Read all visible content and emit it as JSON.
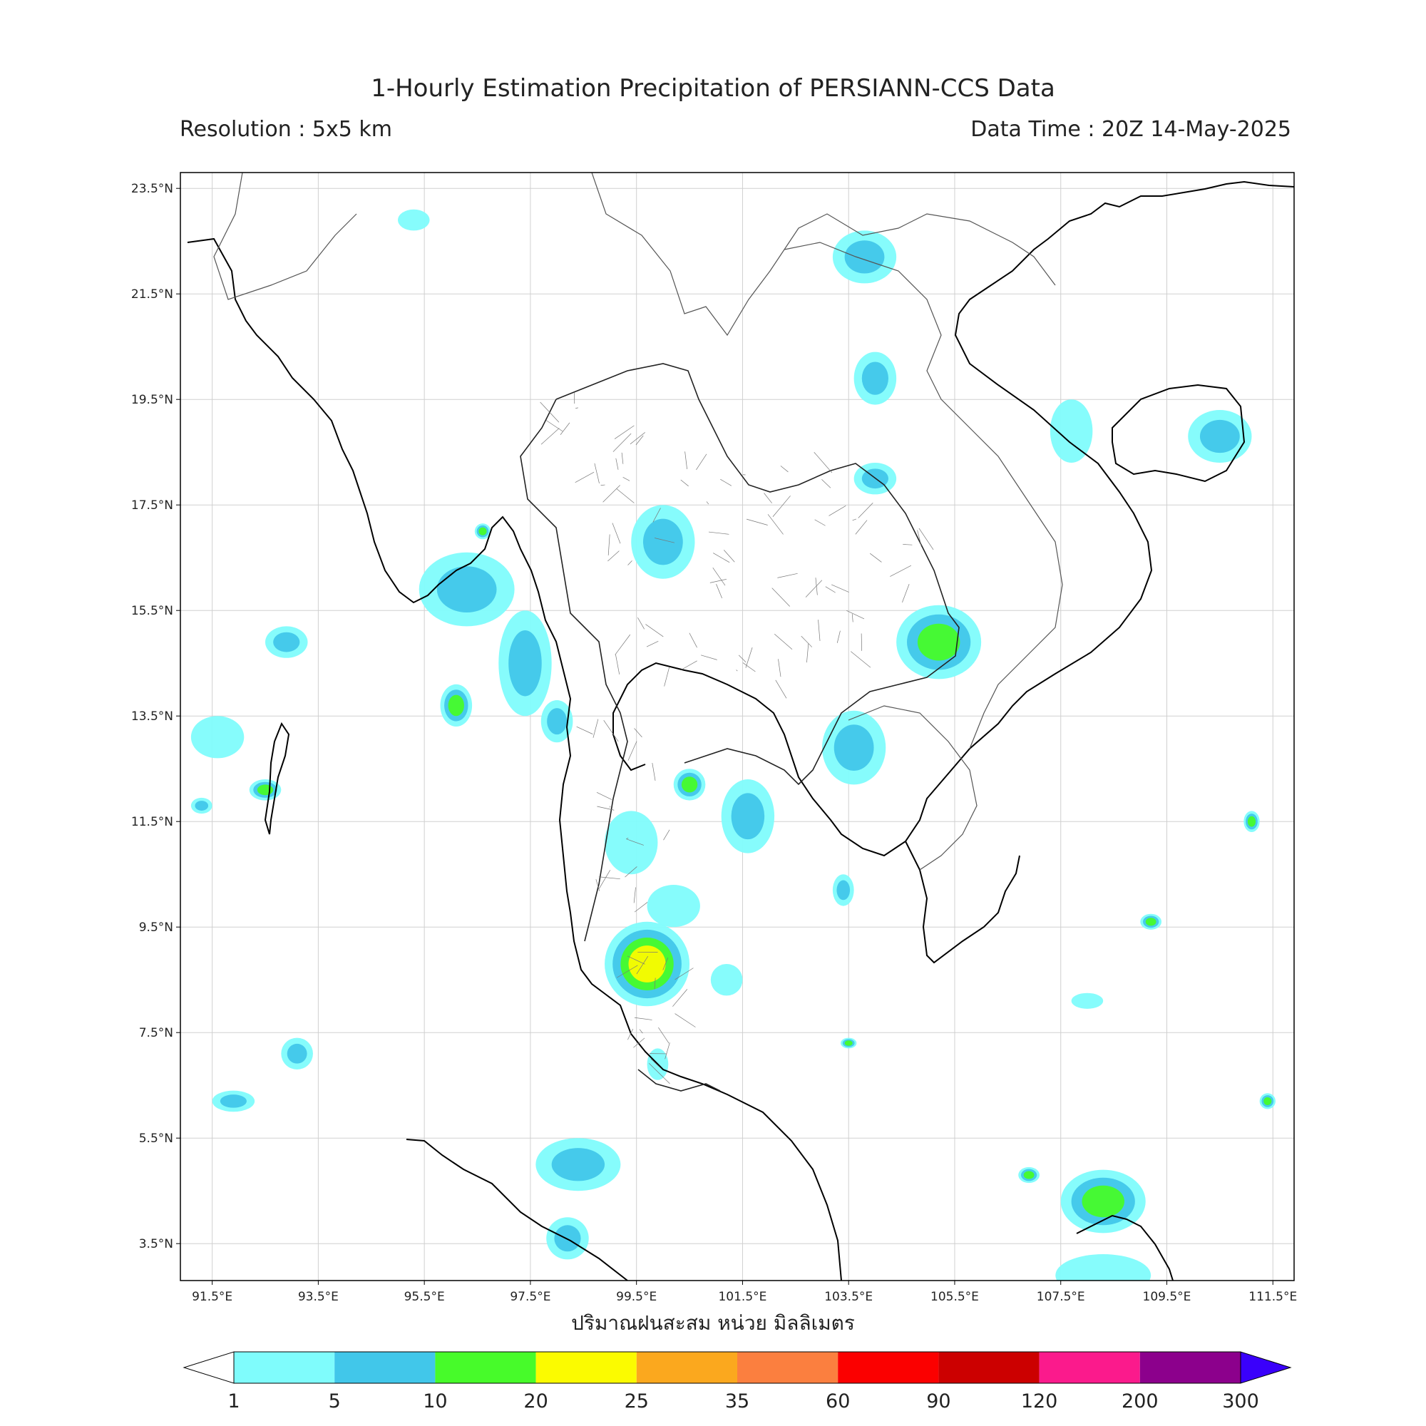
{
  "header": {
    "title": "1-Hourly Estimation Precipitation of PERSIANN-CCS Data",
    "resolution": "Resolution : 5x5 km",
    "data_time": "Data Time : 20Z 14-May-2025"
  },
  "map": {
    "lon_range": [
      90.9,
      111.9
    ],
    "lat_range": [
      2.8,
      23.8
    ],
    "lat_ticks": [
      "23.5°N",
      "21.5°N",
      "19.5°N",
      "17.5°N",
      "15.5°N",
      "13.5°N",
      "11.5°N",
      "9.5°N",
      "7.5°N",
      "5.5°N",
      "3.5°N"
    ],
    "lat_values": [
      23.5,
      21.5,
      19.5,
      17.5,
      15.5,
      13.5,
      11.5,
      9.5,
      7.5,
      5.5,
      3.5
    ],
    "lon_ticks": [
      "91.5°E",
      "93.5°E",
      "95.5°E",
      "97.5°E",
      "99.5°E",
      "101.5°E",
      "103.5°E",
      "105.5°E",
      "107.5°E",
      "109.5°E",
      "111.5°E"
    ],
    "lon_values": [
      91.5,
      93.5,
      95.5,
      97.5,
      99.5,
      101.5,
      103.5,
      105.5,
      107.5,
      109.5,
      111.5
    ],
    "grid": true,
    "precip_cells": [
      {
        "lon": 99.7,
        "lat": 8.8,
        "rx": 0.8,
        "ry": 0.8,
        "mm": 22
      },
      {
        "lon": 105.2,
        "lat": 14.9,
        "rx": 0.8,
        "ry": 0.7,
        "mm": 12
      },
      {
        "lon": 98.4,
        "lat": 5.0,
        "rx": 0.8,
        "ry": 0.5,
        "mm": 8
      },
      {
        "lon": 108.3,
        "lat": 4.3,
        "rx": 0.8,
        "ry": 0.6,
        "mm": 11
      },
      {
        "lon": 103.6,
        "lat": 12.9,
        "rx": 0.6,
        "ry": 0.7,
        "mm": 7
      },
      {
        "lon": 101.6,
        "lat": 11.6,
        "rx": 0.5,
        "ry": 0.7,
        "mm": 6
      },
      {
        "lon": 96.3,
        "lat": 15.9,
        "rx": 0.9,
        "ry": 0.7,
        "mm": 7
      },
      {
        "lon": 97.4,
        "lat": 14.5,
        "rx": 0.5,
        "ry": 1.0,
        "mm": 6
      },
      {
        "lon": 103.8,
        "lat": 22.2,
        "rx": 0.6,
        "ry": 0.5,
        "mm": 6
      },
      {
        "lon": 110.5,
        "lat": 18.8,
        "rx": 0.6,
        "ry": 0.5,
        "mm": 6
      },
      {
        "lon": 100.0,
        "lat": 16.8,
        "rx": 0.6,
        "ry": 0.7,
        "mm": 6
      },
      {
        "lon": 92.9,
        "lat": 14.9,
        "rx": 0.4,
        "ry": 0.3,
        "mm": 6
      },
      {
        "lon": 91.6,
        "lat": 13.1,
        "rx": 0.5,
        "ry": 0.4,
        "mm": 3
      },
      {
        "lon": 98.0,
        "lat": 13.4,
        "rx": 0.3,
        "ry": 0.4,
        "mm": 8
      },
      {
        "lon": 99.4,
        "lat": 11.1,
        "rx": 0.5,
        "ry": 0.6,
        "mm": 4
      },
      {
        "lon": 100.2,
        "lat": 9.9,
        "rx": 0.5,
        "ry": 0.4,
        "mm": 4
      },
      {
        "lon": 104.0,
        "lat": 19.9,
        "rx": 0.4,
        "ry": 0.5,
        "mm": 6
      },
      {
        "lon": 107.7,
        "lat": 18.9,
        "rx": 0.4,
        "ry": 0.6,
        "mm": 4
      },
      {
        "lon": 104.0,
        "lat": 18.0,
        "rx": 0.4,
        "ry": 0.3,
        "mm": 8
      },
      {
        "lon": 96.1,
        "lat": 13.7,
        "rx": 0.3,
        "ry": 0.4,
        "mm": 12
      },
      {
        "lon": 92.5,
        "lat": 12.1,
        "rx": 0.3,
        "ry": 0.2,
        "mm": 13
      },
      {
        "lon": 91.9,
        "lat": 6.2,
        "rx": 0.4,
        "ry": 0.2,
        "mm": 6
      },
      {
        "lon": 93.1,
        "lat": 7.1,
        "rx": 0.3,
        "ry": 0.3,
        "mm": 5
      },
      {
        "lon": 98.2,
        "lat": 3.6,
        "rx": 0.4,
        "ry": 0.4,
        "mm": 7
      },
      {
        "lon": 108.3,
        "lat": 2.9,
        "rx": 0.9,
        "ry": 0.4,
        "mm": 3
      },
      {
        "lon": 95.3,
        "lat": 22.9,
        "rx": 0.3,
        "ry": 0.2,
        "mm": 3
      },
      {
        "lon": 106.9,
        "lat": 4.8,
        "rx": 0.2,
        "ry": 0.15,
        "mm": 13
      },
      {
        "lon": 100.5,
        "lat": 12.2,
        "rx": 0.3,
        "ry": 0.3,
        "mm": 12
      },
      {
        "lon": 103.4,
        "lat": 10.2,
        "rx": 0.2,
        "ry": 0.3,
        "mm": 7
      },
      {
        "lon": 99.9,
        "lat": 6.9,
        "rx": 0.2,
        "ry": 0.3,
        "mm": 3
      },
      {
        "lon": 111.1,
        "lat": 11.5,
        "rx": 0.15,
        "ry": 0.2,
        "mm": 12
      },
      {
        "lon": 111.4,
        "lat": 6.2,
        "rx": 0.15,
        "ry": 0.15,
        "mm": 12
      },
      {
        "lon": 109.2,
        "lat": 9.6,
        "rx": 0.2,
        "ry": 0.15,
        "mm": 11
      },
      {
        "lon": 108.0,
        "lat": 8.1,
        "rx": 0.3,
        "ry": 0.15,
        "mm": 4
      },
      {
        "lon": 101.2,
        "lat": 8.5,
        "rx": 0.3,
        "ry": 0.3,
        "mm": 4
      },
      {
        "lon": 91.3,
        "lat": 11.8,
        "rx": 0.2,
        "ry": 0.15,
        "mm": 6
      },
      {
        "lon": 96.6,
        "lat": 17.0,
        "rx": 0.15,
        "ry": 0.15,
        "mm": 11
      },
      {
        "lon": 103.5,
        "lat": 7.3,
        "rx": 0.15,
        "ry": 0.1,
        "mm": 14
      }
    ]
  },
  "xlabel": "ปริมาณฝนสะสม หน่วย มิลลิเมตร",
  "colorbar": {
    "ticks": [
      "1",
      "5",
      "10",
      "20",
      "25",
      "35",
      "60",
      "90",
      "120",
      "200",
      "300"
    ],
    "colors": [
      "#7ffcfc",
      "#41c7ea",
      "#47fb2a",
      "#fbfb00",
      "#fba81e",
      "#fb7f3f",
      "#fb0000",
      "#cc0000",
      "#fb1a8c",
      "#8c008c",
      "#3a00fb"
    ]
  }
}
